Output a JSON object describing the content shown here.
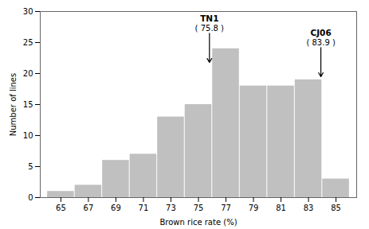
{
  "chart_data": {
    "type": "bar",
    "categories": [
      65,
      67,
      69,
      71,
      73,
      75,
      77,
      79,
      81,
      83,
      85
    ],
    "values": [
      1,
      2,
      6,
      7,
      13,
      15,
      24,
      18,
      18,
      19,
      3
    ],
    "color": "#c0c0c0",
    "xlabel": "Brown rice rate (%)",
    "ylabel": "Number of lines",
    "xlim": [
      63.5,
      86.5
    ],
    "ylim": [
      0,
      30
    ],
    "xticks": [
      65,
      67,
      69,
      71,
      73,
      75,
      77,
      79,
      81,
      83,
      85
    ],
    "yticks": [
      0,
      5,
      10,
      15,
      20,
      25,
      30
    ],
    "grid": false,
    "annotations": [
      {
        "text": "TN1",
        "subtext": "( 75.8 )",
        "x": 75.8,
        "arrow_tip_y": 21.8,
        "arrow_base_y": 26.5
      },
      {
        "text": "CJ06",
        "subtext": "( 83.9 )",
        "x": 83.9,
        "arrow_tip_y": 19.5,
        "arrow_base_y": 24.2
      }
    ]
  }
}
